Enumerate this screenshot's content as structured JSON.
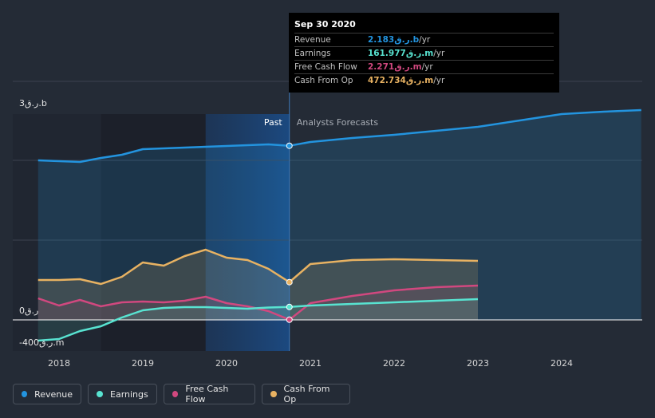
{
  "colors": {
    "background": "#242b36",
    "revenue": "#2394df",
    "earnings": "#58e3d1",
    "free_cash_flow": "#d1487f",
    "cash_from_op": "#e8b262",
    "highlight": "#1b4b84"
  },
  "tooltip": {
    "date": "Sep 30 2020",
    "rows": [
      {
        "label": "Revenue",
        "value": "2.183ر.ق.b",
        "unit": " /yr",
        "color": "#2394df"
      },
      {
        "label": "Earnings",
        "value": "161.977ر.ق.m",
        "unit": " /yr",
        "color": "#58e3d1"
      },
      {
        "label": "Free Cash Flow",
        "value": "2.271ر.ق.m",
        "unit": " /yr",
        "color": "#d1487f"
      },
      {
        "label": "Cash From Op",
        "value": "472.734ر.ق.m",
        "unit": " /yr",
        "color": "#e8b262"
      }
    ]
  },
  "labels": {
    "past": "Past",
    "forecast": "Analysts Forecasts",
    "y_top": "3ر.ق.b",
    "y_zero": "0ر.ق",
    "y_bottom": "-400ر.ق.m"
  },
  "legend": [
    {
      "label": "Revenue",
      "color": "#2394df"
    },
    {
      "label": "Earnings",
      "color": "#58e3d1"
    },
    {
      "label": "Free Cash Flow",
      "color": "#d1487f"
    },
    {
      "label": "Cash From Op",
      "color": "#e8b262"
    }
  ],
  "chart_data": {
    "type": "line",
    "unit": "QAR millions",
    "x_range": [
      2017.55,
      2024.95
    ],
    "ylim": [
      -400,
      3000
    ],
    "grid": true,
    "past_end": 2020.75,
    "highlight_start": 2019.75,
    "x_ticks": [
      "2018",
      "2019",
      "2020",
      "2021",
      "2022",
      "2023",
      "2024"
    ],
    "series": [
      {
        "name": "Revenue",
        "color": "#2394df",
        "past": [
          [
            2017.75,
            2000
          ],
          [
            2018.0,
            1990
          ],
          [
            2018.25,
            1980
          ],
          [
            2018.5,
            2030
          ],
          [
            2018.75,
            2070
          ],
          [
            2019.0,
            2140
          ],
          [
            2019.25,
            2150
          ],
          [
            2019.5,
            2160
          ],
          [
            2019.75,
            2170
          ],
          [
            2020.0,
            2180
          ],
          [
            2020.25,
            2190
          ],
          [
            2020.5,
            2200
          ],
          [
            2020.75,
            2183
          ]
        ],
        "forecast": [
          [
            2020.75,
            2183
          ],
          [
            2021.0,
            2230
          ],
          [
            2021.5,
            2280
          ],
          [
            2022.0,
            2320
          ],
          [
            2022.5,
            2370
          ],
          [
            2023.0,
            2420
          ],
          [
            2023.5,
            2500
          ],
          [
            2024.0,
            2580
          ],
          [
            2024.5,
            2610
          ],
          [
            2024.95,
            2630
          ]
        ]
      },
      {
        "name": "Cash From Op",
        "color": "#e8b262",
        "past": [
          [
            2017.75,
            500
          ],
          [
            2018.0,
            500
          ],
          [
            2018.25,
            510
          ],
          [
            2018.5,
            450
          ],
          [
            2018.75,
            540
          ],
          [
            2019.0,
            720
          ],
          [
            2019.25,
            680
          ],
          [
            2019.5,
            800
          ],
          [
            2019.75,
            880
          ],
          [
            2020.0,
            780
          ],
          [
            2020.25,
            750
          ],
          [
            2020.5,
            640
          ],
          [
            2020.75,
            473
          ]
        ],
        "forecast": [
          [
            2020.75,
            473
          ],
          [
            2021.0,
            700
          ],
          [
            2021.5,
            750
          ],
          [
            2022.0,
            760
          ],
          [
            2022.5,
            750
          ],
          [
            2023.0,
            740
          ]
        ]
      },
      {
        "name": "Free Cash Flow",
        "color": "#d1487f",
        "past": [
          [
            2017.75,
            270
          ],
          [
            2018.0,
            180
          ],
          [
            2018.25,
            250
          ],
          [
            2018.5,
            170
          ],
          [
            2018.75,
            220
          ],
          [
            2019.0,
            230
          ],
          [
            2019.25,
            220
          ],
          [
            2019.5,
            240
          ],
          [
            2019.75,
            290
          ],
          [
            2020.0,
            210
          ],
          [
            2020.25,
            170
          ],
          [
            2020.5,
            110
          ],
          [
            2020.75,
            2
          ]
        ],
        "forecast": [
          [
            2020.75,
            2
          ],
          [
            2021.0,
            210
          ],
          [
            2021.5,
            300
          ],
          [
            2022.0,
            370
          ],
          [
            2022.5,
            410
          ],
          [
            2023.0,
            430
          ]
        ]
      },
      {
        "name": "Earnings",
        "color": "#58e3d1",
        "past": [
          [
            2017.75,
            -260
          ],
          [
            2018.0,
            -240
          ],
          [
            2018.25,
            -140
          ],
          [
            2018.5,
            -80
          ],
          [
            2018.75,
            30
          ],
          [
            2019.0,
            120
          ],
          [
            2019.25,
            150
          ],
          [
            2019.5,
            160
          ],
          [
            2019.75,
            160
          ],
          [
            2020.0,
            150
          ],
          [
            2020.25,
            140
          ],
          [
            2020.5,
            155
          ],
          [
            2020.75,
            162
          ]
        ],
        "forecast": [
          [
            2020.75,
            162
          ],
          [
            2021.0,
            180
          ],
          [
            2021.5,
            200
          ],
          [
            2022.0,
            220
          ],
          [
            2022.5,
            240
          ],
          [
            2023.0,
            260
          ]
        ]
      }
    ]
  }
}
